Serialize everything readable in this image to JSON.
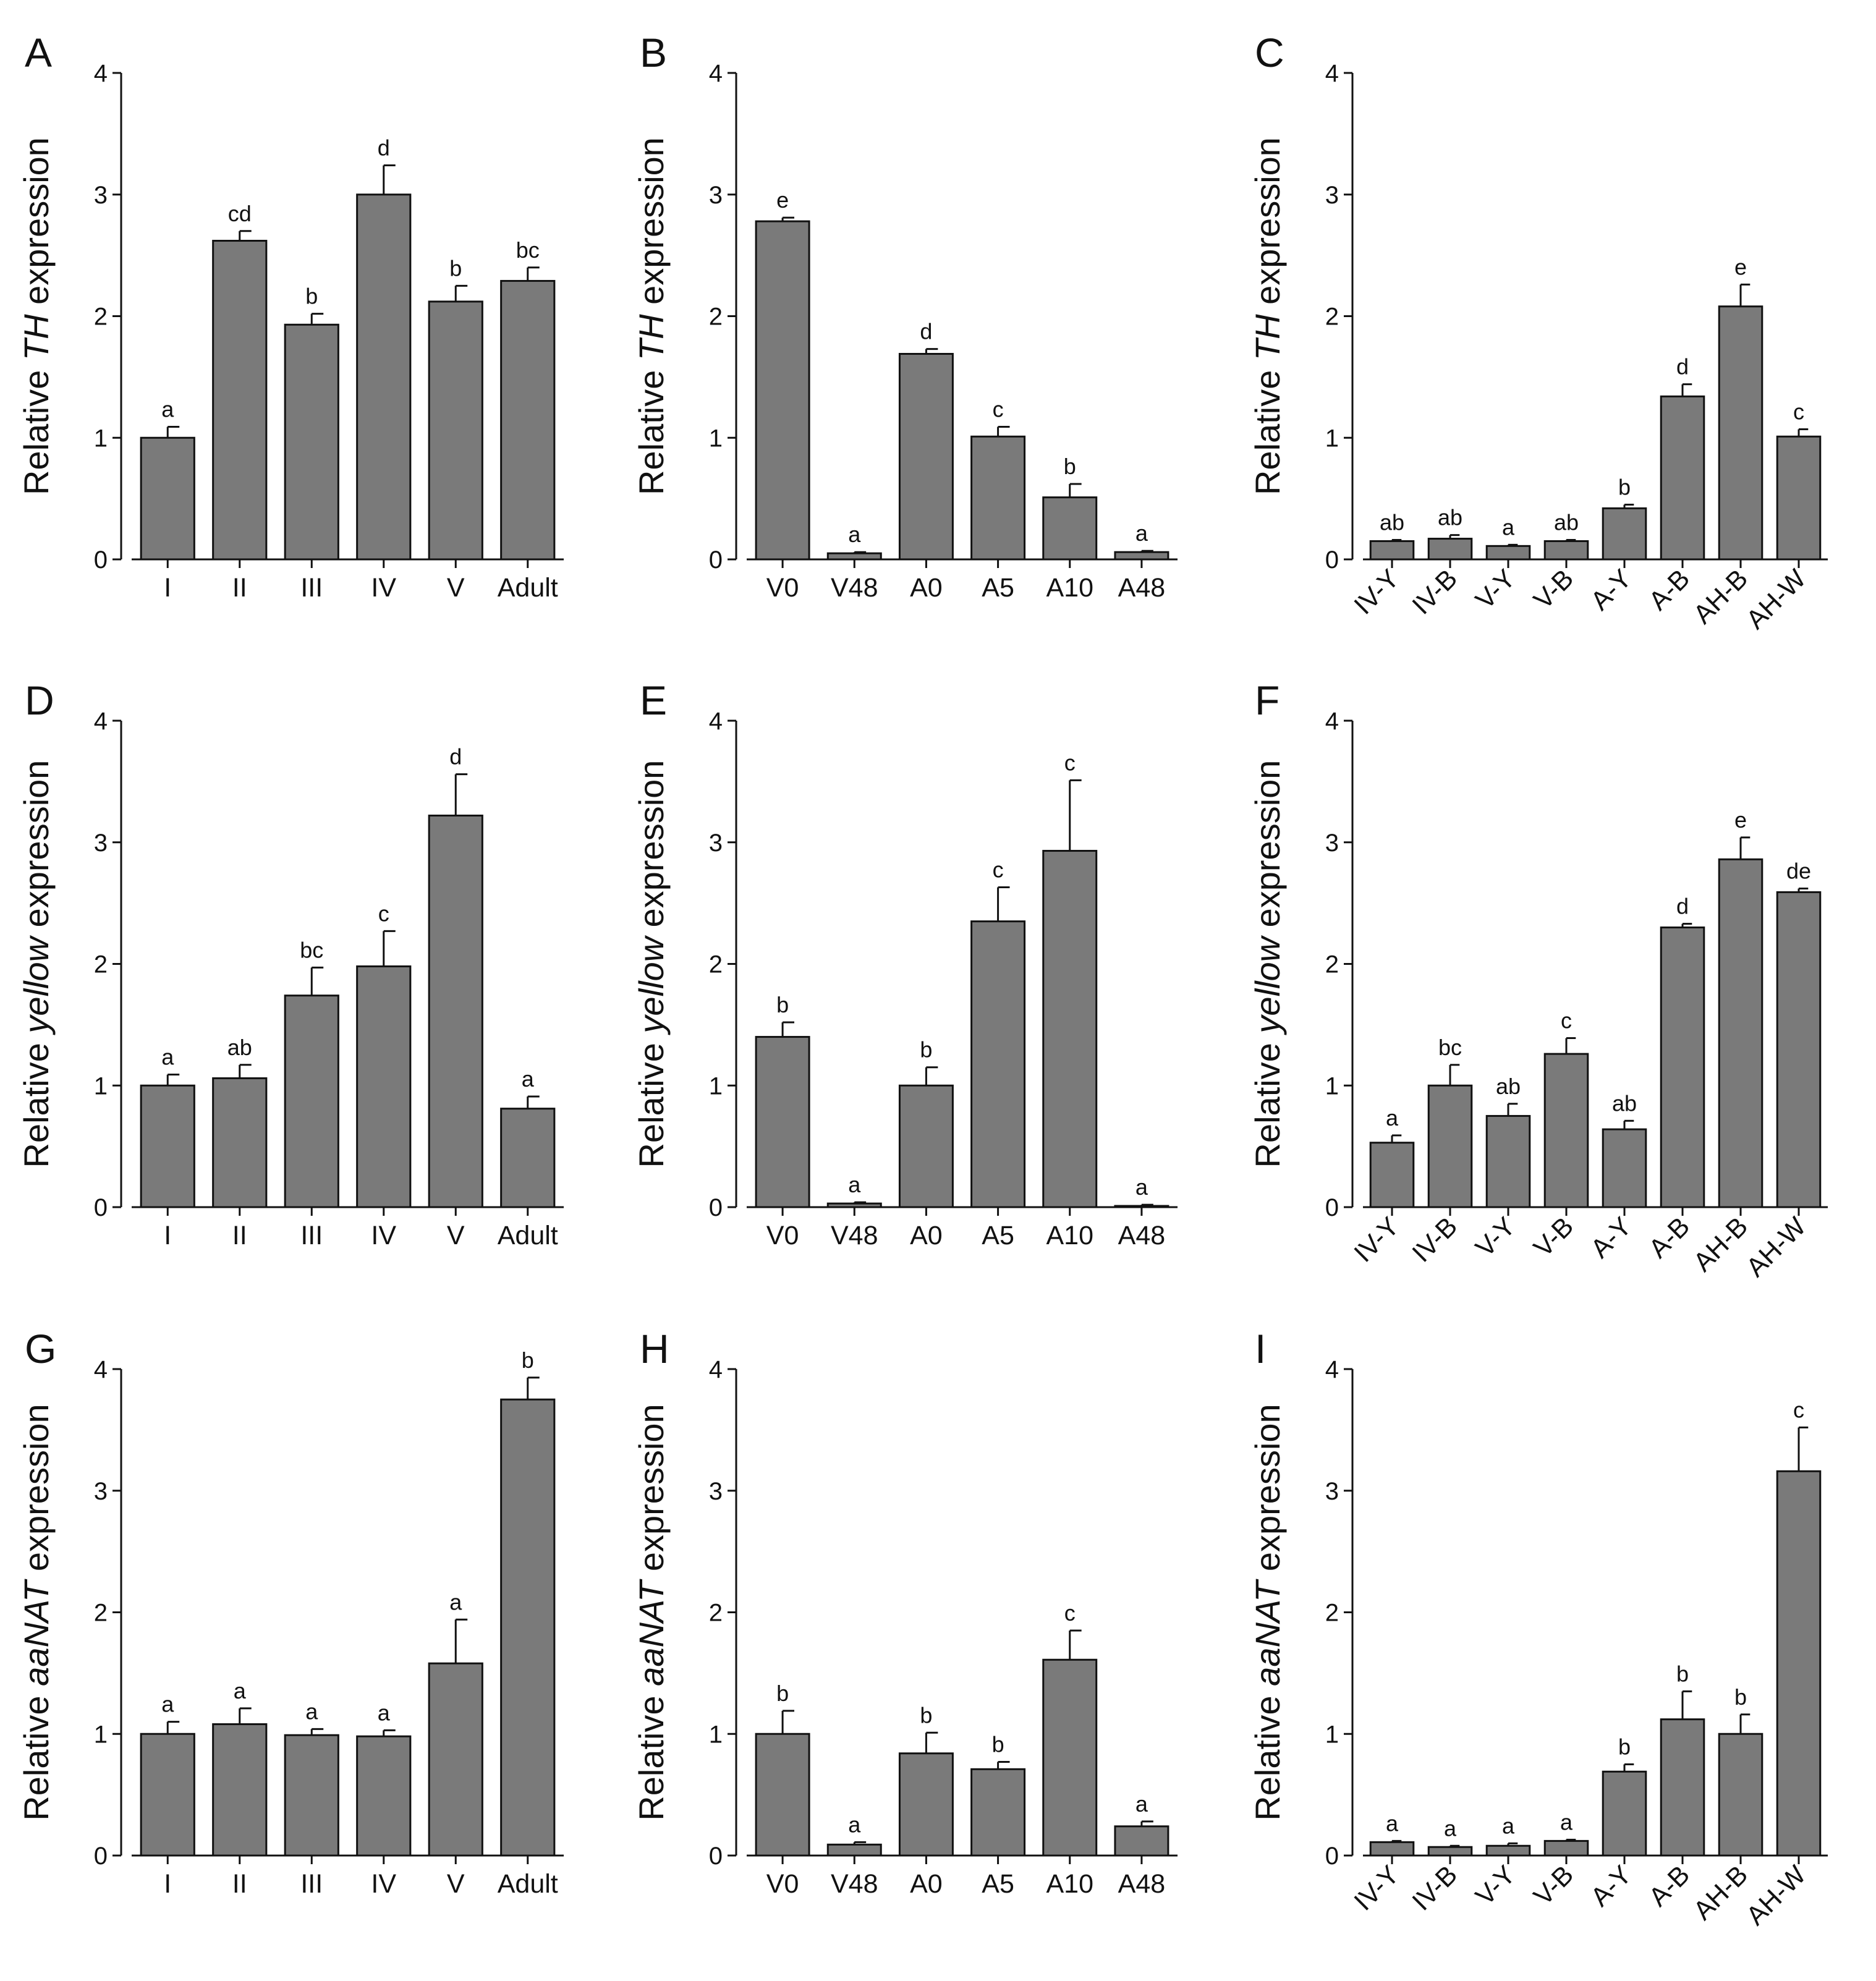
{
  "figure": {
    "colors": {
      "bar": "#7a7a7a",
      "axis": "#111111",
      "text": "#111111",
      "background": "#ffffff"
    }
  },
  "chart_data": [
    {
      "id": "A",
      "panel_label": "A",
      "type": "bar",
      "ylabel_prefix": "Relative ",
      "ylabel_gene": "TH",
      "ylabel_suffix": " expression",
      "ylim": [
        0,
        4
      ],
      "yticks": [
        "0",
        "1",
        "2",
        "3",
        "4"
      ],
      "categories": [
        "I",
        "II",
        "III",
        "IV",
        "V",
        "Adult"
      ],
      "values": [
        1.0,
        2.62,
        1.93,
        3.0,
        2.12,
        2.29
      ],
      "errors": [
        0.09,
        0.08,
        0.09,
        0.24,
        0.13,
        0.11
      ],
      "significance": [
        "a",
        "cd",
        "b",
        "d",
        "b",
        "bc"
      ]
    },
    {
      "id": "B",
      "panel_label": "B",
      "type": "bar",
      "ylabel_prefix": "Relative ",
      "ylabel_gene": "TH",
      "ylabel_suffix": " expression",
      "ylim": [
        0,
        4
      ],
      "yticks": [
        "0",
        "1",
        "2",
        "3",
        "4"
      ],
      "categories": [
        "V0",
        "V48",
        "A0",
        "A5",
        "A10",
        "A48"
      ],
      "values": [
        2.78,
        0.05,
        1.69,
        1.01,
        0.51,
        0.06
      ],
      "errors": [
        0.03,
        0.01,
        0.04,
        0.08,
        0.11,
        0.01
      ],
      "significance": [
        "e",
        "a",
        "d",
        "c",
        "b",
        "a"
      ]
    },
    {
      "id": "C",
      "panel_label": "C",
      "type": "bar",
      "ylabel_prefix": "Relative ",
      "ylabel_gene": "TH",
      "ylabel_suffix": " expression",
      "ylim": [
        0,
        4
      ],
      "yticks": [
        "0",
        "1",
        "2",
        "3",
        "4"
      ],
      "categories": [
        "IV-Y",
        "IV-B",
        "V-Y",
        "V-B",
        "A-Y",
        "A-B",
        "AH-B",
        "AH-W"
      ],
      "values": [
        0.15,
        0.17,
        0.11,
        0.15,
        0.42,
        1.34,
        2.08,
        1.01
      ],
      "errors": [
        0.01,
        0.03,
        0.01,
        0.01,
        0.03,
        0.1,
        0.18,
        0.06
      ],
      "significance": [
        "ab",
        "ab",
        "a",
        "ab",
        "b",
        "d",
        "e",
        "c"
      ]
    },
    {
      "id": "D",
      "panel_label": "D",
      "type": "bar",
      "ylabel_prefix": "Relative ",
      "ylabel_gene": "yellow",
      "ylabel_suffix": " expression",
      "ylim": [
        0,
        4
      ],
      "yticks": [
        "0",
        "1",
        "2",
        "3",
        "4"
      ],
      "categories": [
        "I",
        "II",
        "III",
        "IV",
        "V",
        "Adult"
      ],
      "values": [
        1.0,
        1.06,
        1.74,
        1.98,
        3.22,
        0.81
      ],
      "errors": [
        0.09,
        0.11,
        0.23,
        0.29,
        0.34,
        0.1
      ],
      "significance": [
        "a",
        "ab",
        "bc",
        "c",
        "d",
        "a"
      ]
    },
    {
      "id": "E",
      "panel_label": "E",
      "type": "bar",
      "ylabel_prefix": "Relative ",
      "ylabel_gene": "yellow",
      "ylabel_suffix": " expression",
      "ylim": [
        0,
        4
      ],
      "yticks": [
        "0",
        "1",
        "2",
        "3",
        "4"
      ],
      "categories": [
        "V0",
        "V48",
        "A0",
        "A5",
        "A10",
        "A48"
      ],
      "values": [
        1.4,
        0.03,
        1.0,
        2.35,
        2.93,
        0.01
      ],
      "errors": [
        0.12,
        0.01,
        0.15,
        0.28,
        0.58,
        0.01
      ],
      "significance": [
        "b",
        "a",
        "b",
        "c",
        "c",
        "a"
      ]
    },
    {
      "id": "F",
      "panel_label": "F",
      "type": "bar",
      "ylabel_prefix": "Relative ",
      "ylabel_gene": "yellow",
      "ylabel_suffix": " expression",
      "ylim": [
        0,
        4
      ],
      "yticks": [
        "0",
        "1",
        "2",
        "3",
        "4"
      ],
      "categories": [
        "IV-Y",
        "IV-B",
        "V-Y",
        "V-B",
        "A-Y",
        "A-B",
        "AH-B",
        "AH-W"
      ],
      "values": [
        0.53,
        1.0,
        0.75,
        1.26,
        0.64,
        2.3,
        2.86,
        2.59
      ],
      "errors": [
        0.06,
        0.17,
        0.1,
        0.13,
        0.07,
        0.03,
        0.18,
        0.03
      ],
      "significance": [
        "a",
        "bc",
        "ab",
        "c",
        "ab",
        "d",
        "e",
        "de"
      ]
    },
    {
      "id": "G",
      "panel_label": "G",
      "type": "bar",
      "ylabel_prefix": "Relative ",
      "ylabel_gene": "aaNAT",
      "ylabel_suffix": " expression",
      "ylim": [
        0,
        4
      ],
      "yticks": [
        "0",
        "1",
        "2",
        "3",
        "4"
      ],
      "categories": [
        "I",
        "II",
        "III",
        "IV",
        "V",
        "Adult"
      ],
      "values": [
        1.0,
        1.08,
        0.99,
        0.98,
        1.58,
        3.75
      ],
      "errors": [
        0.1,
        0.13,
        0.05,
        0.05,
        0.36,
        0.18
      ],
      "significance": [
        "a",
        "a",
        "a",
        "a",
        "a",
        "b"
      ]
    },
    {
      "id": "H",
      "panel_label": "H",
      "type": "bar",
      "ylabel_prefix": "Relative ",
      "ylabel_gene": "aaNAT",
      "ylabel_suffix": " expression",
      "ylim": [
        0,
        4
      ],
      "yticks": [
        "0",
        "1",
        "2",
        "3",
        "4"
      ],
      "categories": [
        "V0",
        "V48",
        "A0",
        "A5",
        "A10",
        "A48"
      ],
      "values": [
        1.0,
        0.09,
        0.84,
        0.71,
        1.61,
        0.24
      ],
      "errors": [
        0.19,
        0.02,
        0.17,
        0.06,
        0.24,
        0.04
      ],
      "significance": [
        "b",
        "a",
        "b",
        "b",
        "c",
        "a"
      ]
    },
    {
      "id": "I",
      "panel_label": "I",
      "type": "bar",
      "ylabel_prefix": "Relative ",
      "ylabel_gene": "aaNAT",
      "ylabel_suffix": " expression",
      "ylim": [
        0,
        4
      ],
      "yticks": [
        "0",
        "1",
        "2",
        "3",
        "4"
      ],
      "categories": [
        "IV-Y",
        "IV-B",
        "V-Y",
        "V-B",
        "A-Y",
        "A-B",
        "AH-B",
        "AH-W"
      ],
      "values": [
        0.11,
        0.07,
        0.08,
        0.12,
        0.69,
        1.12,
        1.0,
        3.16
      ],
      "errors": [
        0.01,
        0.01,
        0.02,
        0.01,
        0.06,
        0.23,
        0.16,
        0.36
      ],
      "significance": [
        "a",
        "a",
        "a",
        "a",
        "b",
        "b",
        "b",
        "c"
      ]
    }
  ]
}
